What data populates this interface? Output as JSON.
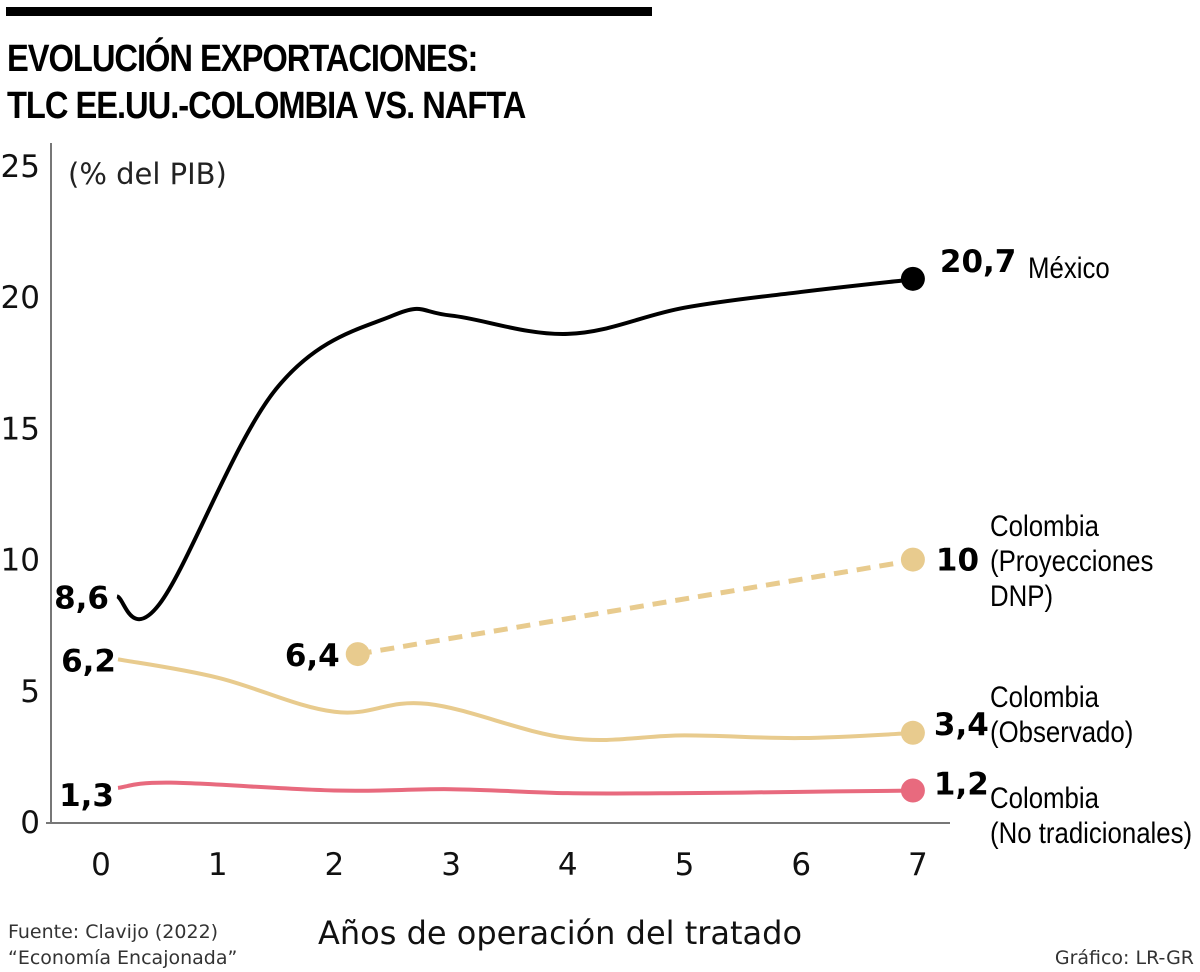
{
  "chart_data": {
    "type": "line",
    "title": "EVOLUCIÓN EXPORTACIONES: TLC EE.UU.-COLOMBIA VS. NAFTA",
    "title_lines": [
      "EVOLUCIÓN EXPORTACIONES:",
      "TLC EE.UU.-COLOMBIA VS. NAFTA"
    ],
    "ylabel": "(% del PIB)",
    "xlabel": "Años de operación del tratado",
    "ylim": [
      0,
      25
    ],
    "xlim": [
      0,
      7
    ],
    "yticks": [
      0,
      5,
      10,
      15,
      20,
      25
    ],
    "xticks": [
      0,
      1,
      2,
      3,
      4,
      5,
      6,
      7
    ],
    "grid": false,
    "series": [
      {
        "name": "México",
        "label_lines": [
          "México"
        ],
        "color": "#000000",
        "dashed": false,
        "x": [
          0,
          0.5,
          1.5,
          2.5,
          3,
          4,
          5,
          6,
          7
        ],
        "y": [
          8.6,
          8.3,
          16.5,
          19.3,
          19.3,
          18.6,
          19.6,
          20.2,
          20.7
        ],
        "start_label": "8,6",
        "end_label": "20,7",
        "end_marker": true
      },
      {
        "name": "Colombia (Proyecciones DNP)",
        "label_lines": [
          "Colombia",
          "(Proyecciones",
          "DNP)"
        ],
        "color": "#E8CB8E",
        "dashed": true,
        "x": [
          2.2,
          7
        ],
        "y": [
          6.4,
          10
        ],
        "start_label": "6,4",
        "end_label": "10",
        "start_marker": true,
        "end_marker": true
      },
      {
        "name": "Colombia (Observado)",
        "label_lines": [
          "Colombia",
          "(Observado)"
        ],
        "color": "#E8CB8E",
        "dashed": false,
        "x": [
          0,
          1,
          2,
          2.8,
          4,
          5,
          6,
          7
        ],
        "y": [
          6.2,
          5.5,
          4.2,
          4.5,
          3.2,
          3.3,
          3.2,
          3.4
        ],
        "start_label": "6,2",
        "end_label": "3,4",
        "end_marker": true
      },
      {
        "name": "Colombia (No tradicionales)",
        "label_lines": [
          "Colombia",
          "(No tradicionales)"
        ],
        "color": "#E86A7E",
        "dashed": false,
        "x": [
          0,
          0.6,
          2,
          3,
          4,
          5,
          6,
          7
        ],
        "y": [
          1.3,
          1.5,
          1.2,
          1.25,
          1.1,
          1.1,
          1.15,
          1.2
        ],
        "start_label": "1,3",
        "end_label": "1,2",
        "end_marker": true
      }
    ]
  },
  "footer": {
    "source_line1": "Fuente: Clavijo (2022)",
    "source_line2": "“Economía Encajonada”",
    "credit": "Gráfico: LR-GR"
  }
}
